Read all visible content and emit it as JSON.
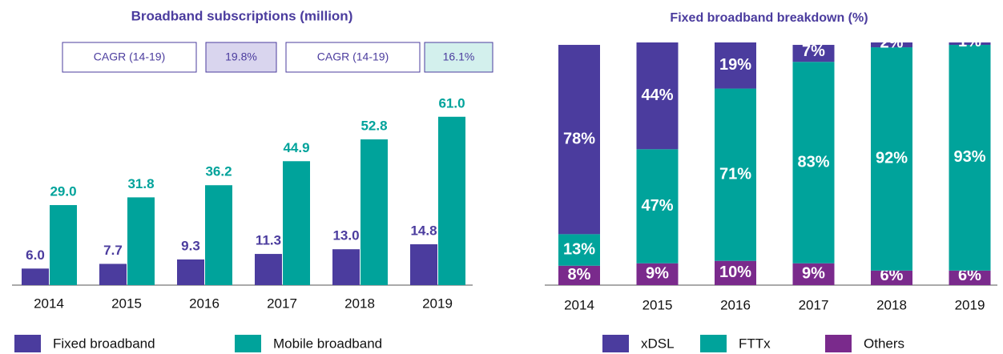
{
  "chart_data": [
    {
      "type": "bar",
      "title": "Broadband subscriptions  (million)",
      "annotations": [
        {
          "label": "CAGR (14-19)",
          "value": "19.8%",
          "color": "#d9d5ee"
        },
        {
          "label": "CAGR (14-19)",
          "value": "16.1%",
          "color": "#d3f0ed"
        }
      ],
      "categories": [
        "2014",
        "2015",
        "2016",
        "2017",
        "2018",
        "2019"
      ],
      "series": [
        {
          "name": "Fixed broadband",
          "color": "#4b3c9e",
          "values": [
            6.0,
            7.7,
            9.3,
            11.3,
            13.0,
            14.8
          ],
          "value_labels": [
            "6.0",
            "7.7",
            "9.3",
            "11.3",
            "13.0",
            "14.8"
          ]
        },
        {
          "name": "Mobile broadband",
          "color": "#00a39b",
          "values": [
            29.0,
            31.8,
            36.2,
            44.9,
            52.8,
            61.0
          ],
          "value_labels": [
            "29.0",
            "31.8",
            "36.2",
            "44.9",
            "52.8",
            "61.0"
          ]
        }
      ],
      "ylim": [
        0,
        65
      ]
    },
    {
      "type": "stacked_bar",
      "title": "Fixed broadband breakdown (%)",
      "categories": [
        "2014",
        "2015",
        "2016",
        "2017",
        "2018",
        "2019"
      ],
      "series": [
        {
          "name": "Others",
          "color": "#7a2a8c",
          "values": [
            8,
            9,
            10,
            9,
            6,
            6
          ],
          "value_labels": [
            "8%",
            "9%",
            "10%",
            "9%",
            "6%",
            "6%"
          ]
        },
        {
          "name": "FTTx",
          "color": "#00a39b",
          "values": [
            13,
            47,
            71,
            83,
            92,
            93
          ],
          "value_labels": [
            "13%",
            "47%",
            "71%",
            "83%",
            "92%",
            "93%"
          ]
        },
        {
          "name": "xDSL",
          "color": "#4b3c9e",
          "values": [
            78,
            44,
            19,
            7,
            2,
            1
          ],
          "value_labels": [
            "78%",
            "44%",
            "19%",
            "7%",
            "2%",
            "1%"
          ]
        }
      ],
      "legend_order": [
        "xDSL",
        "FTTx",
        "Others"
      ],
      "ylim": [
        0,
        100
      ]
    }
  ]
}
